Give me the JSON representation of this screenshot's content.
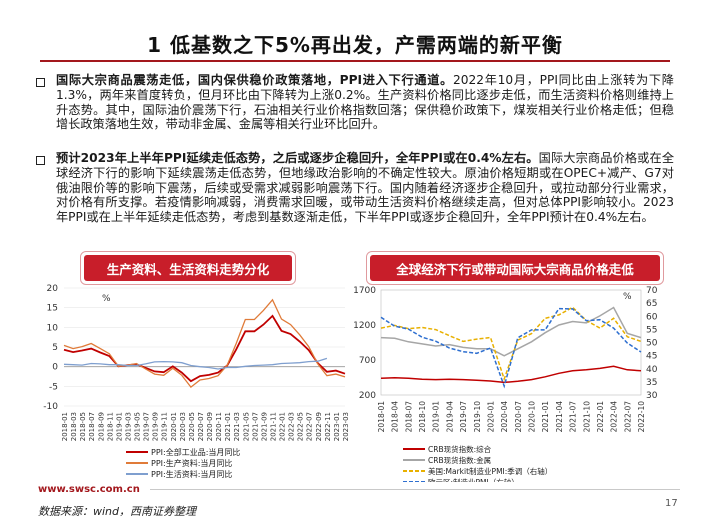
{
  "title": "1 低基数之下5%再出发，产需两端的新平衡",
  "bullets": [
    {
      "lead": "国际大宗商品震荡走低，国内保供稳价政策落地，PPI进入下行通道。",
      "body": "2022年10月，PPI同比由上涨转为下降1.3%，两年来首度转负，但月环比由下降转为上涨0.2%。生产资料价格同比逐步走低，而生活资料价格则维持上升态势。其中，国际油价震荡下行，石油相关行业价格指数回落；保供稳价政策下，煤炭相关行业价格走低；但稳增长政策落地生效，带动非金属、金属等相关行业环比回升。"
    },
    {
      "lead": "预计2023年上半年PPI延续走低态势，之后或逐步企稳回升，全年PPI或在0.4%左右。",
      "body": "国际大宗商品价格或在全球经济下行的影响下延续震荡走低态势，但地缘政治影响的不确定性较大。原油价格短期或在OPEC+减产、G7对俄油限价等的影响下震荡，后续或受需求减弱影响震荡下行。国内随着经济逐步企稳回升，或拉动部分行业需求，对价格有所支撑。若疫情影响减弱，消费需求回暖，或带动生活资料价格继续走高，但对总体PPI影响较小。2023年PPI或在上半年延续走低态势，考虑到基数逐渐走低，下半年PPI或逐步企稳回升，全年PPI预计在0.4%左右。"
    }
  ],
  "left_chart": {
    "header": "生产资料、生活资料走势分化",
    "unit": "%",
    "y_ticks": [
      "20",
      "15",
      "10",
      "5",
      "0",
      "-5",
      "-10"
    ],
    "x_ticks": [
      "2018-01",
      "2018-03",
      "2018-05",
      "2018-07",
      "2018-09",
      "2018-11",
      "2019-01",
      "2019-03",
      "2019-05",
      "2019-07",
      "2019-09",
      "2019-11",
      "2020-01",
      "2020-03",
      "2020-05",
      "2020-07",
      "2020-09",
      "2020-11",
      "2021-01",
      "2021-03",
      "2021-05",
      "2021-07",
      "2021-09",
      "2021-11",
      "2022-01",
      "2022-03",
      "2022-05",
      "2022-07",
      "2022-09",
      "2022-11",
      "2023-01",
      "2023-03"
    ],
    "legend": [
      "PPI:全部工业品:当月同比",
      "PPI:生产资料:当月同比",
      "PPI:生活资料:当月同比"
    ],
    "colors": [
      "#c00000",
      "#e07b39",
      "#7f9fcf"
    ]
  },
  "right_chart": {
    "header": "全球经济下行或带动国际大宗商品价格走低",
    "unit": "%",
    "y_left_ticks": [
      "1700",
      "1200",
      "700",
      "200"
    ],
    "y_right_ticks": [
      "70",
      "65",
      "60",
      "55",
      "50",
      "45",
      "40",
      "35",
      "30"
    ],
    "x_ticks": [
      "2018-01",
      "2018-04",
      "2018-07",
      "2018-10",
      "2019-01",
      "2019-04",
      "2019-07",
      "2019-10",
      "2020-01",
      "2020-04",
      "2020-07",
      "2020-10",
      "2021-01",
      "2021-04",
      "2021-07",
      "2021-10",
      "2022-01",
      "2022-04",
      "2022-07",
      "2022-10"
    ],
    "legend": [
      "CRB现货指数:综合",
      "CRB现货指数:金属",
      "美国:Markit制造业PMI:季调（右轴）",
      "欧元区:制造业PMI（右轴）"
    ],
    "colors": [
      "#c00000",
      "#a6a6a6",
      "#e8b000",
      "#2e6fd0"
    ]
  },
  "chart_data": [
    {
      "type": "line",
      "title": "生产资料、生活资料走势分化",
      "ylabel": "%",
      "ylim": [
        -10,
        20
      ],
      "x": [
        "2018-01",
        "2018-03",
        "2018-05",
        "2018-07",
        "2018-09",
        "2018-11",
        "2019-01",
        "2019-03",
        "2019-05",
        "2019-07",
        "2019-09",
        "2019-11",
        "2020-01",
        "2020-03",
        "2020-05",
        "2020-07",
        "2020-09",
        "2020-11",
        "2021-01",
        "2021-03",
        "2021-05",
        "2021-07",
        "2021-09",
        "2021-11",
        "2022-01",
        "2022-03",
        "2022-05",
        "2022-07",
        "2022-09",
        "2022-11",
        "2023-01",
        "2023-03"
      ],
      "series": [
        {
          "name": "PPI:全部工业品:当月同比",
          "values": [
            4.3,
            3.7,
            4.1,
            4.6,
            3.6,
            2.7,
            0.1,
            0.4,
            0.6,
            -0.3,
            -1.2,
            -1.4,
            0.1,
            -1.5,
            -3.7,
            -2.4,
            -2.1,
            -1.5,
            0.3,
            4.4,
            9.0,
            9.0,
            10.7,
            12.9,
            9.1,
            8.3,
            6.4,
            4.2,
            0.9,
            -1.3,
            -1.0,
            -1.8
          ]
        },
        {
          "name": "PPI:生产资料:当月同比",
          "values": [
            5.4,
            4.6,
            5.1,
            5.9,
            4.6,
            3.3,
            0.1,
            0.4,
            0.8,
            -0.6,
            -1.9,
            -2.2,
            -0.4,
            -2.2,
            -5.2,
            -3.4,
            -3.0,
            -2.3,
            0.4,
            5.9,
            12.0,
            12.0,
            14.3,
            17.0,
            12.1,
            10.7,
            8.1,
            5.1,
            0.7,
            -2.3,
            -1.9,
            -2.6
          ]
        },
        {
          "name": "PPI:生活资料:当月同比",
          "values": [
            0.6,
            0.5,
            0.4,
            0.8,
            0.7,
            0.5,
            0.5,
            0.3,
            0.3,
            0.7,
            1.2,
            1.3,
            1.2,
            1.0,
            0.3,
            0.0,
            -0.2,
            -0.6,
            -0.2,
            -0.2,
            0.1,
            0.3,
            0.4,
            0.5,
            0.8,
            0.9,
            1.0,
            1.3,
            1.4,
            2.1,
            null,
            null
          ]
        }
      ]
    },
    {
      "type": "line",
      "title": "全球经济下行或带动国际大宗商品价格走低",
      "ylim": [
        200,
        1700
      ],
      "y2lim": [
        30,
        70
      ],
      "x": [
        "2018-01",
        "2018-04",
        "2018-07",
        "2018-10",
        "2019-01",
        "2019-04",
        "2019-07",
        "2019-10",
        "2020-01",
        "2020-04",
        "2020-07",
        "2020-10",
        "2021-01",
        "2021-04",
        "2021-07",
        "2021-10",
        "2022-01",
        "2022-04",
        "2022-07",
        "2022-10"
      ],
      "series": [
        {
          "name": "CRB现货指数:综合",
          "axis": "left",
          "values": [
            440,
            445,
            440,
            425,
            420,
            425,
            420,
            410,
            400,
            380,
            395,
            420,
            460,
            510,
            545,
            560,
            580,
            610,
            560,
            545
          ]
        },
        {
          "name": "CRB现货指数:金属",
          "axis": "left",
          "values": [
            1020,
            1010,
            960,
            930,
            900,
            920,
            880,
            860,
            860,
            760,
            860,
            960,
            1090,
            1200,
            1250,
            1230,
            1330,
            1450,
            1080,
            1020
          ]
        },
        {
          "name": "美国:Markit制造业PMI:季调（右轴）",
          "axis": "right",
          "values": [
            55.5,
            56.5,
            55.3,
            55.7,
            54.9,
            52.6,
            50.4,
            51.3,
            51.9,
            36.1,
            50.9,
            53.4,
            59.2,
            60.5,
            63.4,
            58.4,
            55.5,
            59.2,
            52.2,
            50.4
          ]
        },
        {
          "name": "欧元区:制造业PMI（右轴）",
          "axis": "right",
          "values": [
            59.6,
            56.2,
            55.1,
            52.0,
            50.5,
            47.9,
            46.5,
            45.9,
            47.9,
            33.4,
            51.8,
            54.8,
            54.8,
            62.9,
            62.8,
            58.3,
            58.7,
            55.5,
            49.8,
            46.4
          ]
        }
      ]
    }
  ],
  "footer": {
    "url": "www.swsc.com.cn",
    "source": "数据来源：wind，西南证券整理",
    "page": "17"
  }
}
